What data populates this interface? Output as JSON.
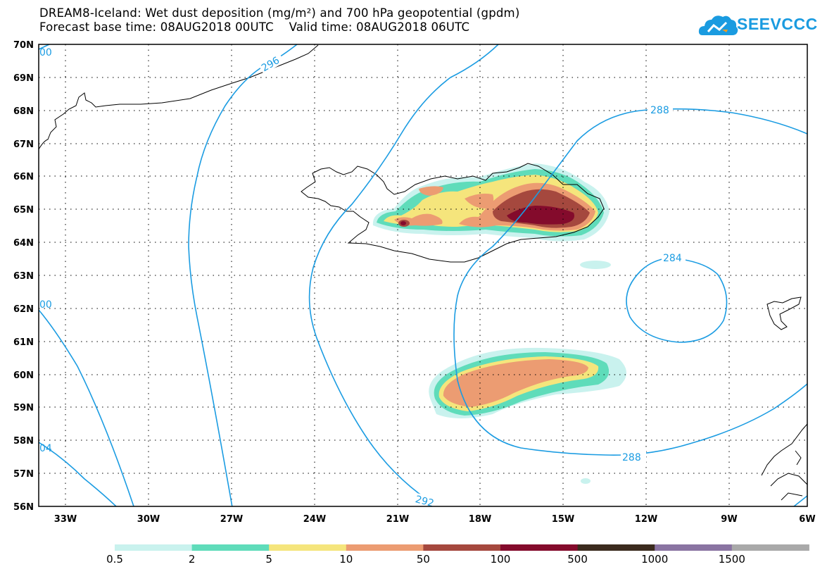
{
  "header": {
    "title_line1": "DREAM8-Iceland: Wet dust deposition (mg/m²) and 700 hPa geopotential (gpdm)",
    "title_line2": "Forecast base time: 08AUG2018 00UTC    Valid time: 08AUG2018 06UTC"
  },
  "logo": {
    "text": "SEEVCCC",
    "icon": "cloud-icon",
    "color": "#1a9be0"
  },
  "map": {
    "lat_labels": [
      "70N",
      "69N",
      "68N",
      "67N",
      "66N",
      "65N",
      "64N",
      "63N",
      "62N",
      "61N",
      "60N",
      "59N",
      "58N",
      "57N",
      "56N"
    ],
    "lon_labels": [
      "33W",
      "30W",
      "27W",
      "24W",
      "21W",
      "18W",
      "15W",
      "12W",
      "9W",
      "6W"
    ],
    "contour_labels": [
      {
        "id": "c296",
        "text": "296"
      },
      {
        "id": "c288a",
        "text": "288"
      },
      {
        "id": "c284",
        "text": "284"
      },
      {
        "id": "c288b",
        "text": "288"
      },
      {
        "id": "c292",
        "text": "292"
      },
      {
        "id": "c300",
        "text": "00"
      },
      {
        "id": "c300b",
        "text": "00"
      },
      {
        "id": "c304",
        "text": "04"
      }
    ],
    "contour_color": "#1b9ce2"
  },
  "legend": {
    "labels": [
      "0.5",
      "2",
      "5",
      "10",
      "50",
      "100",
      "500",
      "1000",
      "1500"
    ],
    "colors": [
      "#c9f2ee",
      "#5fdcba",
      "#f5e57c",
      "#ec9c72",
      "#a5483e",
      "#840b2c",
      "#3b2b1e",
      "#8a74a2",
      "#a9a9a9"
    ]
  }
}
